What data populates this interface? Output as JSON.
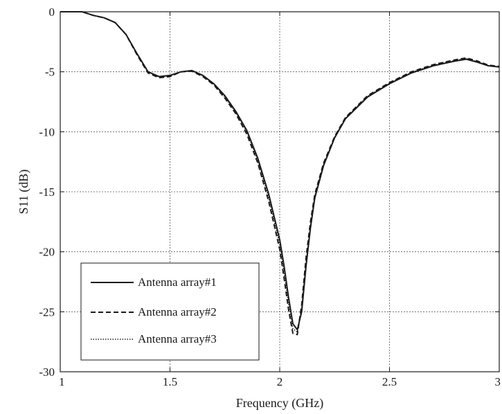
{
  "chart_data": {
    "type": "line",
    "title": "",
    "xlabel": "Frequency (GHz)",
    "ylabel": "S11 (dB)",
    "xlim": [
      1,
      3
    ],
    "ylim": [
      -30,
      0
    ],
    "xticks": [
      1,
      1.5,
      2,
      2.5,
      3
    ],
    "xtick_labels": [
      "1",
      "1.5",
      "2",
      "2.5",
      "3"
    ],
    "yticks": [
      0,
      -5,
      -10,
      -15,
      -20,
      -25,
      -30
    ],
    "ytick_labels": [
      "0",
      "-5",
      "-10",
      "-15",
      "-20",
      "-25",
      "-30"
    ],
    "grid": true,
    "legend_position": "bottom-left",
    "series": [
      {
        "name": "Antenna array#1",
        "line_style": "solid",
        "color": "#1a1a1a",
        "x": [
          1.0,
          1.05,
          1.1,
          1.15,
          1.2,
          1.25,
          1.3,
          1.35,
          1.4,
          1.45,
          1.5,
          1.55,
          1.6,
          1.65,
          1.7,
          1.75,
          1.8,
          1.85,
          1.9,
          1.95,
          2.0,
          2.02,
          2.04,
          2.06,
          2.08,
          2.1,
          2.12,
          2.14,
          2.16,
          2.2,
          2.25,
          2.3,
          2.4,
          2.5,
          2.6,
          2.7,
          2.8,
          2.85,
          2.9,
          2.95,
          3.0
        ],
        "y": [
          0.0,
          0.0,
          0.0,
          -0.3,
          -0.5,
          -0.9,
          -1.9,
          -3.5,
          -5.0,
          -5.4,
          -5.3,
          -5.0,
          -4.9,
          -5.3,
          -6.0,
          -7.0,
          -8.3,
          -9.9,
          -12.2,
          -15.2,
          -19.0,
          -21.2,
          -23.8,
          -26.0,
          -26.5,
          -25.0,
          -21.2,
          -18.0,
          -15.5,
          -12.8,
          -10.5,
          -8.9,
          -7.1,
          -6.0,
          -5.1,
          -4.5,
          -4.1,
          -3.95,
          -4.2,
          -4.5,
          -4.6
        ]
      },
      {
        "name": "Antenna array#2",
        "line_style": "dashed",
        "color": "#1a1a1a",
        "x": [
          1.0,
          1.05,
          1.1,
          1.15,
          1.2,
          1.25,
          1.3,
          1.35,
          1.4,
          1.45,
          1.5,
          1.55,
          1.6,
          1.65,
          1.7,
          1.75,
          1.8,
          1.85,
          1.9,
          1.95,
          2.0,
          2.02,
          2.04,
          2.06,
          2.08,
          2.1,
          2.12,
          2.14,
          2.16,
          2.2,
          2.25,
          2.3,
          2.4,
          2.5,
          2.6,
          2.7,
          2.8,
          2.85,
          2.9,
          2.95,
          3.0
        ],
        "y": [
          0.0,
          0.0,
          0.0,
          -0.3,
          -0.5,
          -0.9,
          -1.9,
          -3.6,
          -5.1,
          -5.5,
          -5.4,
          -5.0,
          -4.95,
          -5.4,
          -6.1,
          -7.2,
          -8.5,
          -10.2,
          -12.6,
          -15.8,
          -19.8,
          -22.2,
          -24.8,
          -26.8,
          -26.9,
          -24.4,
          -20.5,
          -17.5,
          -15.2,
          -12.6,
          -10.4,
          -8.8,
          -7.0,
          -5.9,
          -5.0,
          -4.4,
          -4.0,
          -3.85,
          -4.1,
          -4.45,
          -4.55
        ]
      },
      {
        "name": "Antenna array#3",
        "line_style": "dotted",
        "color": "#1a1a1a",
        "x": [
          1.0,
          1.05,
          1.1,
          1.15,
          1.2,
          1.25,
          1.3,
          1.35,
          1.4,
          1.45,
          1.5,
          1.55,
          1.6,
          1.65,
          1.7,
          1.75,
          1.8,
          1.85,
          1.9,
          1.95,
          2.0,
          2.02,
          2.04,
          2.06,
          2.08,
          2.1,
          2.12,
          2.14,
          2.16,
          2.2,
          2.25,
          2.3,
          2.4,
          2.5,
          2.6,
          2.7,
          2.8,
          2.85,
          2.9,
          2.95,
          3.0
        ],
        "y": [
          0.0,
          0.0,
          0.0,
          -0.3,
          -0.5,
          -0.9,
          -1.9,
          -3.5,
          -5.0,
          -5.45,
          -5.35,
          -5.0,
          -4.9,
          -5.35,
          -6.05,
          -7.1,
          -8.4,
          -10.0,
          -12.4,
          -15.5,
          -19.4,
          -21.7,
          -24.3,
          -26.4,
          -26.7,
          -24.7,
          -20.8,
          -17.8,
          -15.3,
          -12.7,
          -10.45,
          -8.85,
          -7.05,
          -5.95,
          -5.05,
          -4.45,
          -4.05,
          -3.9,
          -4.15,
          -4.5,
          -4.6
        ]
      }
    ]
  }
}
